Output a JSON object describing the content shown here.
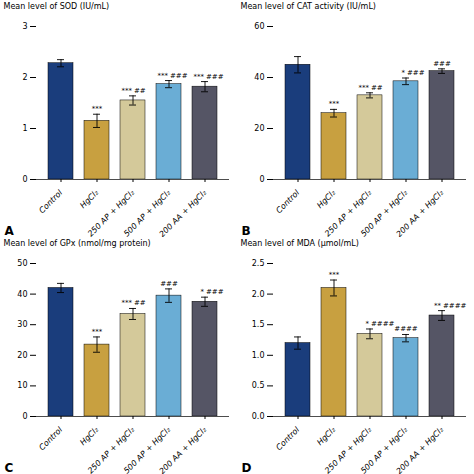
{
  "chart_data": [
    {
      "type": "bar",
      "title": "A",
      "ylabel": "Mean level of SOD (IU/mL)",
      "categories": [
        "Control",
        "HgCl₂",
        "250 AP + HgCl₂",
        "500 AP + HgCl₂",
        "200 AA + HgCl₂"
      ],
      "values": [
        2.28,
        1.15,
        1.55,
        1.87,
        1.82
      ],
      "errors": [
        0.07,
        0.13,
        0.09,
        0.07,
        0.1
      ],
      "colors": [
        "#1a3d7c",
        "#c8a040",
        "#d4c99a",
        "#6aadd5",
        "#555565"
      ],
      "ylim": [
        0,
        3
      ],
      "yticks": [
        0,
        1,
        2,
        3
      ],
      "annotations": [
        {
          "category": "HgCl₂",
          "text": "***"
        },
        {
          "category": "250 AP + HgCl₂",
          "text": "***"
        },
        {
          "category": "250 AP + HgCl₂",
          "text": "##"
        },
        {
          "category": "500 AP + HgCl₂",
          "text": "***"
        },
        {
          "category": "500 AP + HgCl₂",
          "text": "###"
        },
        {
          "category": "200 AA + HgCl₂",
          "text": "***"
        },
        {
          "category": "200 AA + HgCl₂",
          "text": "###"
        }
      ]
    },
    {
      "type": "bar",
      "title": "B",
      "ylabel": "Mean level of CAT activity (IU/mL)",
      "categories": [
        "Control",
        "HgCl₂",
        "250 AP + HgCl₂",
        "500 AP + HgCl₂",
        "200 AA + HgCl₂"
      ],
      "values": [
        45.0,
        26.0,
        33.0,
        38.5,
        42.5
      ],
      "errors": [
        3.2,
        1.5,
        1.0,
        1.3,
        0.9
      ],
      "colors": [
        "#1a3d7c",
        "#c8a040",
        "#d4c99a",
        "#6aadd5",
        "#555565"
      ],
      "ylim": [
        0,
        60
      ],
      "yticks": [
        0,
        20,
        40,
        60
      ],
      "annotations": [
        {
          "category": "HgCl₂",
          "text": "***"
        },
        {
          "category": "250 AP + HgCl₂",
          "text": "***"
        },
        {
          "category": "250 AP + HgCl₂",
          "text": "##"
        },
        {
          "category": "500 AP + HgCl₂",
          "text": "*"
        },
        {
          "category": "500 AP + HgCl₂",
          "text": "###"
        },
        {
          "category": "200 AA + HgCl₂",
          "text": "###"
        }
      ]
    },
    {
      "type": "bar",
      "title": "C",
      "ylabel": "Mean level of GPx (nmol/mg protein)",
      "categories": [
        "Control",
        "HgCl₂",
        "250 AP + HgCl₂",
        "500 AP + HgCl₂",
        "200 AA + HgCl₂"
      ],
      "values": [
        42.0,
        23.5,
        33.5,
        39.5,
        37.5
      ],
      "errors": [
        1.5,
        2.5,
        1.8,
        2.2,
        1.5
      ],
      "colors": [
        "#1a3d7c",
        "#c8a040",
        "#d4c99a",
        "#6aadd5",
        "#555565"
      ],
      "ylim": [
        0,
        50
      ],
      "yticks": [
        0,
        10,
        20,
        30,
        40,
        50
      ],
      "annotations": [
        {
          "category": "HgCl₂",
          "text": "***"
        },
        {
          "category": "250 AP + HgCl₂",
          "text": "***"
        },
        {
          "category": "250 AP + HgCl₂",
          "text": "##"
        },
        {
          "category": "500 AP + HgCl₂",
          "text": "###"
        },
        {
          "category": "200 AA + HgCl₂",
          "text": "*"
        },
        {
          "category": "200 AA + HgCl₂",
          "text": "###"
        }
      ]
    },
    {
      "type": "bar",
      "title": "D",
      "ylabel": "Mean level of MDA (μmol/mL)",
      "categories": [
        "Control",
        "HgCl₂",
        "250 AP + HgCl₂",
        "500 AP + HgCl₂",
        "200 AA + HgCl₂"
      ],
      "values": [
        1.2,
        2.1,
        1.35,
        1.28,
        1.65
      ],
      "errors": [
        0.1,
        0.13,
        0.08,
        0.06,
        0.08
      ],
      "colors": [
        "#1a3d7c",
        "#c8a040",
        "#d4c99a",
        "#6aadd5",
        "#555565"
      ],
      "ylim": [
        0,
        2.5
      ],
      "yticks": [
        {
          "value": 0,
          "label": "0.0"
        },
        0.5,
        {
          "value": 1,
          "label": "1.0"
        },
        1.5,
        {
          "value": 2,
          "label": "2.0"
        },
        2.5
      ],
      "annotations": [
        {
          "category": "HgCl₂",
          "text": "***"
        },
        {
          "category": "250 AP + HgCl₂",
          "text": "*"
        },
        {
          "category": "250 AP + HgCl₂",
          "text": "####"
        },
        {
          "category": "500 AP + HgCl₂",
          "text": "####"
        },
        {
          "category": "200 AA + HgCl₂",
          "text": "**"
        },
        {
          "category": "200 AA + HgCl₂",
          "text": "####"
        }
      ]
    }
  ]
}
